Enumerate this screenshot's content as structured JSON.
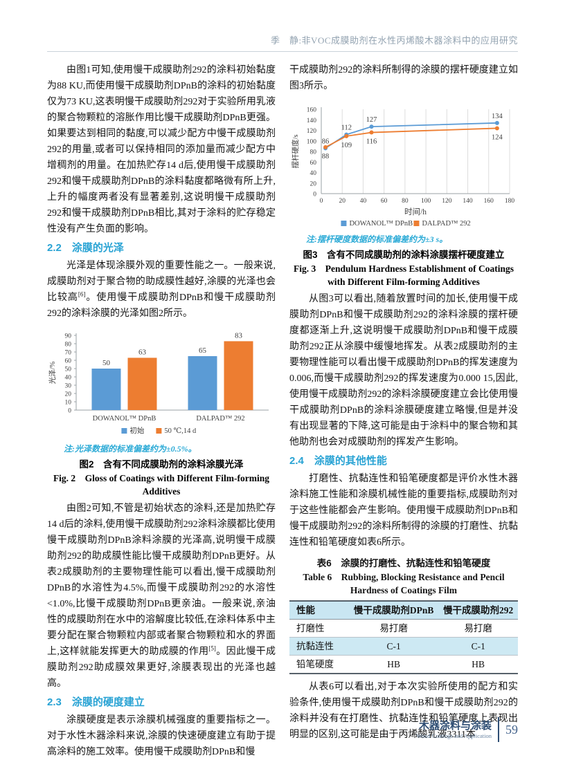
{
  "header": {
    "running_title": "季　静:非VOC成膜助剂在水性丙烯酸木器涂料中的应用研究"
  },
  "colors": {
    "series_blue": "#5B9BD5",
    "series_orange": "#ED7D31",
    "heading_accent": "#29A3D4",
    "note_accent": "#2BAAD6",
    "footer_navy": "#2F4E74",
    "table_header_bg": "#C9E6F2"
  },
  "left": {
    "p1": "由图1可知,使用慢干成膜助剂292的涂料初始黏度为88 KU,而使用慢干成膜助剂DPnB的涂料的初始黏度仅为73 KU,这表明慢干成膜助剂292对于实验所用乳液的聚合物颗粒的溶胀作用比慢干成膜助剂DPnB更强。如果要达到相同的黏度,可以减少配方中慢干成膜助剂292的用量,或者可以保持相同的添加量而减少配方中增稠剂的用量。在加热贮存14 d后,使用慢干成膜助剂292和慢干成膜助剂DPnB的涂料黏度都略微有所上升,上升的幅度两者没有显著差别,这说明慢干成膜助剂292和慢干成膜助剂DPnB相比,其对于涂料的贮存稳定性没有产生负面的影响。",
    "h_2_2": "2.2　涂膜的光泽",
    "p2": {
      "pre": "光泽是体现涂膜外观的重要性能之一。一般来说,成膜助剂对于聚合物的助成膜性越好,涂膜的光泽也会比较高",
      "ref": "[6]",
      "post": "。使用慢干成膜助剂DPnB和慢干成膜助剂292的涂料涂膜的光泽如图2所示。"
    },
    "fig2_note": "注:光泽数据的标准偏差约为±0.5%。",
    "fig2_caption_zh": "图2　含有不同成膜助剂的涂料涂膜光泽",
    "fig2_caption_en": "Fig. 2　Gloss of Coatings with Different Film-forming Additives",
    "p3": {
      "pre": "由图2可知,不管是初始状态的涂料,还是加热贮存14 d后的涂料,使用慢干成膜助剂292涂料涂膜都比使用慢干成膜助剂DPnB涂料涂膜的光泽高,说明慢干成膜助剂292的助成膜性能比慢干成膜助剂DPnB更好。从表2成膜助剂的主要物理性能可以看出,慢干成膜助剂DPnB的水溶性为4.5%,而慢干成膜助剂292的水溶性<1.0%,比慢干成膜助剂DPnB更亲油。一般来说,亲油性的成膜助剂在水中的溶解度比较低,在涂料体系中主要分配在聚合物颗粒内部或者聚合物颗粒和水的界面上,这样就能发挥更大的助成膜的作用",
      "ref": "[5]",
      "post": "。因此慢干成膜助剂292助成膜效果更好,涂膜表现出的光泽也越高。"
    },
    "h_2_3": "2.3　涂膜的硬度建立",
    "p4": "涂膜硬度是表示涂膜机械强度的重要指标之一。对于水性木器涂料来说,涂膜的快速硬度建立有助于提高涂料的施工效率。使用慢干成膜助剂DPnB和慢"
  },
  "right": {
    "p1": "干成膜助剂292的涂料所制得的涂膜的摆杆硬度建立如图3所示。",
    "fig3_note": "注:摆杆硬度数据的标准偏差约为±3 s。",
    "fig3_caption_zh": "图3　含有不同成膜助剂的涂料涂膜摆杆硬度建立",
    "fig3_caption_en": "Fig. 3　Pendulum Hardness Establishment of Coatings with Different Film-forming Additives",
    "p2": "从图3可以看出,随着放置时间的加长,使用慢干成膜助剂DPnB和慢干成膜助剂292的涂料涂膜的摆杆硬度都逐渐上升,这说明慢干成膜助剂DPnB和慢干成膜助剂292正从涂膜中缓慢地挥发。从表2成膜助剂的主要物理性能可以看出慢干成膜助剂DPnB的挥发速度为0.006,而慢干成膜助剂292的挥发速度为0.000 15,因此,使用慢干成膜助剂292的涂料涂膜硬度建立会比使用慢干成膜助剂DPnB的涂料涂膜硬度建立略慢,但是并没有出现显著的下降,这可能是由于涂料中的聚合物和其他助剂也会对成膜助剂的挥发产生影响。",
    "h_2_4": "2.4　涂膜的其他性能",
    "p3": "打磨性、抗黏连性和铅笔硬度都是评价水性木器涂料施工性能和涂膜机械性能的重要指标,成膜助剂对于这些性能都会产生影响。使用慢干成膜助剂DPnB和慢干成膜助剂292的涂料所制得的涂膜的打磨性、抗黏连性和铅笔硬度如表6所示。",
    "p4": "从表6可以看出,对于本次实验所使用的配方和实验条件,使用慢干成膜助剂DPnB和慢干成膜助剂292的涂料并没有在打磨性、抗黏连性和铅笔硬度上表现出明显的区别,这可能是由于丙烯酸乳液3311本"
  },
  "table6": {
    "caption_zh": "表6　涂膜的打磨性、抗黏连性和铅笔硬度",
    "caption_en": "Table 6　Rubbing, Blocking Resistance and Pencil Hardness of Coatings Film",
    "headers": [
      "性能",
      "慢干成膜助剂DPnB",
      "慢干成膜助剂292"
    ],
    "rows": [
      [
        "打磨性",
        "易打磨",
        "易打磨"
      ],
      [
        "抗黏连性",
        "C-1",
        "C-1"
      ],
      [
        "铅笔硬度",
        "HB",
        "HB"
      ]
    ]
  },
  "chart_data": [
    {
      "type": "bar",
      "figure": "图2",
      "categories": [
        "DOWANOL™ DPnB",
        "DALPAD™ 292"
      ],
      "series": [
        {
          "name": "初始",
          "color": "#5B9BD5",
          "values": [
            50,
            65
          ]
        },
        {
          "name": "50 ℃,14 d",
          "color": "#ED7D31",
          "values": [
            63,
            83
          ]
        }
      ],
      "xlabel": "",
      "ylabel": "光泽/%",
      "ylim": [
        0,
        90
      ],
      "ytick": 10,
      "data_labels": true,
      "grid": false,
      "legend_position": "bottom"
    },
    {
      "type": "line",
      "figure": "图3",
      "x": [
        4,
        24,
        48,
        168
      ],
      "series": [
        {
          "name": "DOWANOL™ DPnB",
          "color": "#5B9BD5",
          "values": [
            86,
            112,
            127,
            134
          ]
        },
        {
          "name": "DALPAD™ 292",
          "color": "#ED7D31",
          "values": [
            88,
            109,
            116,
            124
          ]
        }
      ],
      "xlabel": "时间/h",
      "ylabel": "摆杆硬度/s",
      "xlim": [
        0,
        180
      ],
      "xtick": 20,
      "ylim": [
        0,
        160
      ],
      "ytick": 20,
      "grid": "vertical",
      "data_labels": true,
      "legend_position": "bottom"
    }
  ],
  "footer": {
    "journal_zh": "木器涂料与涂装",
    "journal_en": "Wood Coatings and Application",
    "page": "59"
  }
}
